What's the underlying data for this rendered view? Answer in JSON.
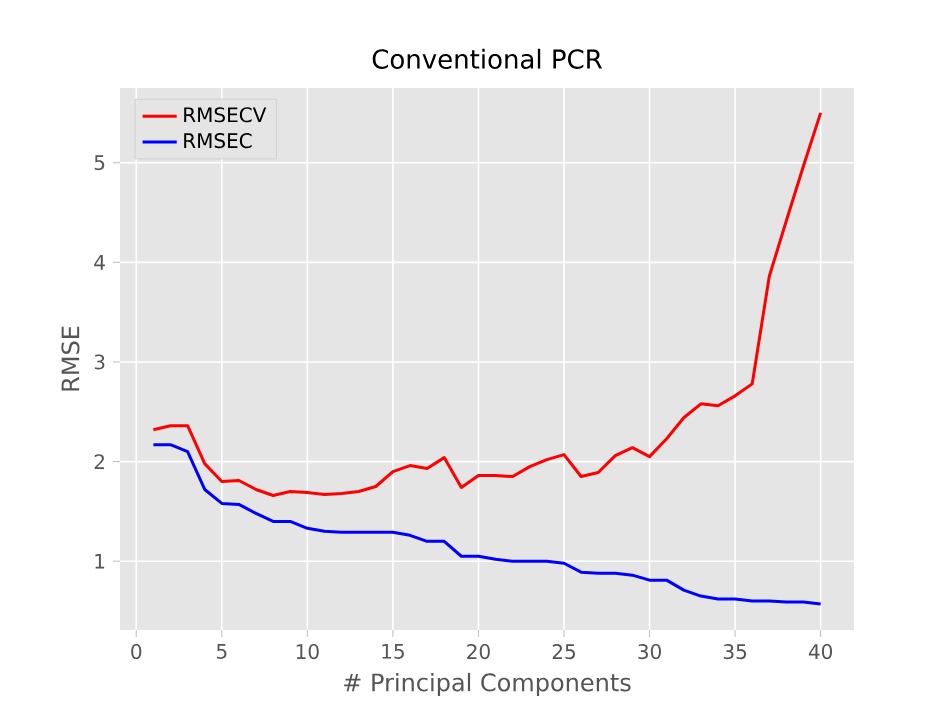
{
  "chart_data": {
    "type": "line",
    "title": "Conventional PCR",
    "xlabel": "# Principal Components",
    "ylabel": "RMSE",
    "x": [
      1,
      2,
      3,
      4,
      5,
      6,
      7,
      8,
      9,
      10,
      11,
      12,
      13,
      14,
      15,
      16,
      17,
      18,
      19,
      20,
      21,
      22,
      23,
      24,
      25,
      26,
      27,
      28,
      29,
      30,
      31,
      32,
      33,
      34,
      35,
      36,
      37,
      38,
      39,
      40
    ],
    "series": [
      {
        "name": "RMSECV",
        "color": "#ff0000",
        "values": [
          2.32,
          2.36,
          2.36,
          1.98,
          1.8,
          1.81,
          1.72,
          1.66,
          1.7,
          1.69,
          1.67,
          1.68,
          1.7,
          1.75,
          1.9,
          1.96,
          1.93,
          2.04,
          1.74,
          1.86,
          1.86,
          1.85,
          1.95,
          2.02,
          2.07,
          1.85,
          1.89,
          2.06,
          2.14,
          2.05,
          2.23,
          2.44,
          2.58,
          2.56,
          2.66,
          2.78,
          3.86,
          4.42,
          4.97,
          5.5
        ]
      },
      {
        "name": "RMSEC",
        "color": "#0000ff",
        "values": [
          2.17,
          2.17,
          2.1,
          1.72,
          1.58,
          1.57,
          1.48,
          1.4,
          1.4,
          1.33,
          1.3,
          1.29,
          1.29,
          1.29,
          1.29,
          1.26,
          1.2,
          1.2,
          1.05,
          1.05,
          1.02,
          1.0,
          1.0,
          1.0,
          0.98,
          0.89,
          0.88,
          0.88,
          0.86,
          0.81,
          0.81,
          0.71,
          0.65,
          0.62,
          0.62,
          0.6,
          0.6,
          0.59,
          0.59,
          0.57
        ]
      }
    ],
    "xlim": [
      -0.95,
      41.95
    ],
    "ylim": [
      0.31,
      5.75
    ],
    "xticks": [
      0,
      5,
      10,
      15,
      20,
      25,
      30,
      35,
      40
    ],
    "yticks": [
      1,
      2,
      3,
      4,
      5
    ],
    "grid": true,
    "legend": "top left",
    "marker": "none",
    "line_style": "solid"
  }
}
